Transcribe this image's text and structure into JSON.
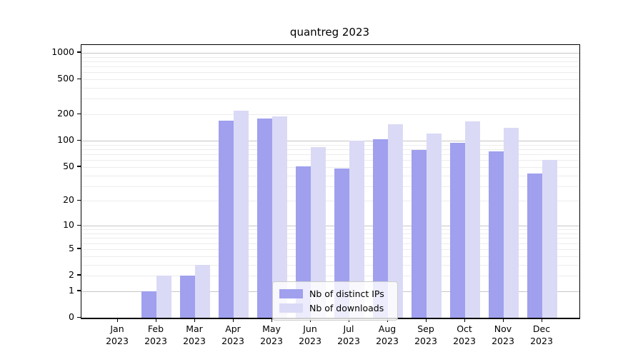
{
  "chart_data": {
    "type": "bar",
    "title": "quantreg 2023",
    "categories": [
      "Jan",
      "Feb",
      "Mar",
      "Apr",
      "May",
      "Jun",
      "Jul",
      "Aug",
      "Sep",
      "Oct",
      "Nov",
      "Dec"
    ],
    "year_label": "2023",
    "series": [
      {
        "name": "Nb of distinct IPs",
        "color": "#a0a0ef",
        "values": [
          0,
          1,
          2,
          170,
          180,
          51,
          48,
          105,
          78,
          95,
          75,
          42
        ]
      },
      {
        "name": "Nb of downloads",
        "color": "#dadaf6",
        "values": [
          0,
          2,
          3,
          220,
          190,
          84,
          100,
          155,
          120,
          165,
          140,
          60
        ]
      }
    ],
    "yticks": [
      0,
      1,
      2,
      5,
      10,
      20,
      50,
      100,
      200,
      500,
      1000
    ],
    "yscale": "log1p",
    "ylim": [
      0,
      1200
    ],
    "grid": {
      "major": [
        1,
        10,
        100,
        1000
      ],
      "minor_decades": [
        1,
        10,
        100
      ],
      "color_major": "#c6c6c6",
      "color_minor": "#ececec"
    },
    "legend": {
      "position": "inside-bottom-center",
      "entries": [
        "Nb of distinct IPs",
        "Nb of downloads"
      ]
    }
  }
}
